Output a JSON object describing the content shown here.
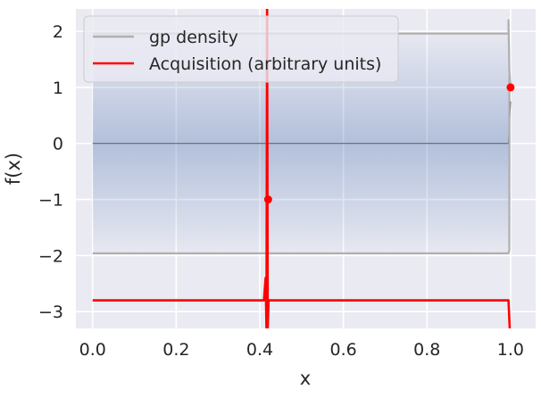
{
  "chart_data": {
    "type": "line",
    "title": "",
    "xlabel": "x",
    "ylabel": "f(x)",
    "xlim": [
      -0.04,
      1.06
    ],
    "ylim": [
      -3.3,
      2.4
    ],
    "xticks": [
      0.0,
      0.2,
      0.4,
      0.6,
      0.8,
      1.0
    ],
    "xtick_labels": [
      "0.0",
      "0.2",
      "0.4",
      "0.6",
      "0.8",
      "1.0"
    ],
    "yticks": [
      -3,
      -2,
      -1,
      0,
      1,
      2
    ],
    "ytick_labels": [
      "−3",
      "−2",
      "−1",
      "0",
      "1",
      "2"
    ],
    "grid": true,
    "legend_position": "upper-left",
    "legend": [
      {
        "label": "gp density",
        "color": "#b0b0b0"
      },
      {
        "label": "Acquisition (arbitrary units)",
        "color": "#ff0000"
      }
    ],
    "density_band": {
      "x_range": [
        0.0,
        1.0
      ],
      "center": 0.0,
      "half_width": 1.96,
      "color": "#4c72b0"
    },
    "series": [
      {
        "role": "mean",
        "color": "#555555",
        "points": [
          [
            0.0,
            0.0
          ],
          [
            0.995,
            0.0
          ],
          [
            1.0,
            0.75
          ]
        ]
      },
      {
        "role": "upper-bound",
        "color": "#b0b0b0",
        "points": [
          [
            0.0,
            1.96
          ],
          [
            0.995,
            1.96
          ],
          [
            0.995,
            2.2
          ],
          [
            0.997,
            1.3
          ],
          [
            1.0,
            1.0
          ]
        ]
      },
      {
        "role": "lower-bound",
        "color": "#b0b0b0",
        "points": [
          [
            0.0,
            -1.96
          ],
          [
            0.995,
            -1.96
          ],
          [
            0.997,
            -1.9
          ],
          [
            0.997,
            1.2
          ]
        ]
      },
      {
        "name": "Acquisition (arbitrary units)",
        "color": "#ff0000",
        "points": [
          [
            0.0,
            -2.8
          ],
          [
            0.41,
            -2.8
          ],
          [
            0.414,
            -2.4
          ],
          [
            0.416,
            -3.3
          ],
          [
            0.4175,
            2.4
          ],
          [
            0.419,
            -3.3
          ],
          [
            0.421,
            -2.8
          ],
          [
            0.995,
            -2.8
          ],
          [
            0.998,
            -3.3
          ]
        ]
      }
    ],
    "observations": [
      {
        "x": 0.42,
        "y": -1.0,
        "color": "#ff0000"
      },
      {
        "x": 1.0,
        "y": 1.0,
        "color": "#ff0000"
      }
    ]
  }
}
